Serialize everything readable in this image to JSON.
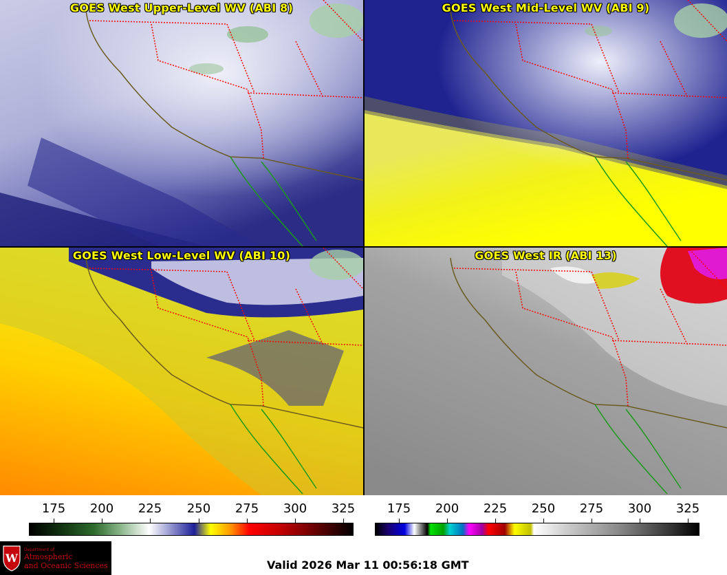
{
  "panels": [
    {
      "title": "GOES West Upper-Level WV (ABI 8)",
      "palette": "wv-upper"
    },
    {
      "title": "GOES West Mid-Level WV (ABI 9)",
      "palette": "wv-mid"
    },
    {
      "title": "GOES West Low-Level WV (ABI 10)",
      "palette": "wv-low"
    },
    {
      "title": "GOES West IR (ABI 13)",
      "palette": "ir"
    }
  ],
  "colorbars": [
    {
      "ticks": [
        "175",
        "200",
        "225",
        "250",
        "275",
        "300",
        "325"
      ]
    },
    {
      "ticks": [
        "175",
        "200",
        "225",
        "250",
        "275",
        "300",
        "325"
      ]
    }
  ],
  "logo": {
    "department": "Department of",
    "line1": "Atmospheric",
    "line2": "and Oceanic Sciences",
    "emblem": "W"
  },
  "valid_time": "Valid 2026 Mar 11 00:56:18 GMT",
  "colors": {
    "title_text": "#ffff00",
    "state_border": "#ff0000",
    "coastline": "#6b5a1e",
    "mexico_coast": "#1a9a1a",
    "logo_red": "#c5050c"
  }
}
